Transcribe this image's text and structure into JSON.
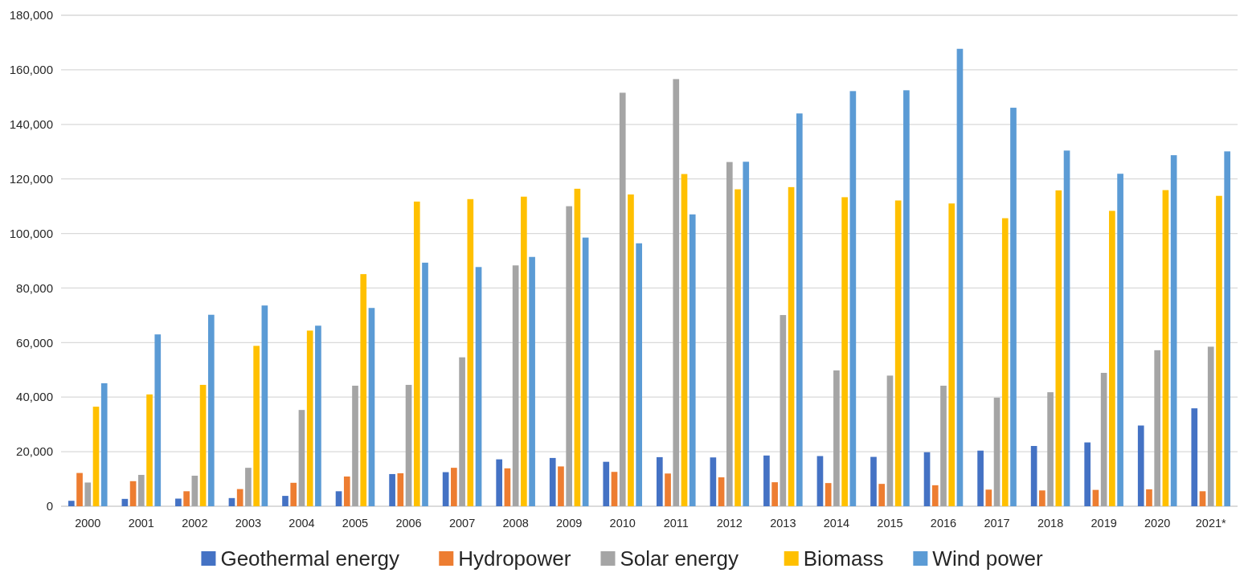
{
  "chart_data": {
    "type": "bar",
    "categories": [
      "2000",
      "2001",
      "2002",
      "2003",
      "2004",
      "2005",
      "2006",
      "2007",
      "2008",
      "2009",
      "2010",
      "2011",
      "2012",
      "2013",
      "2014",
      "2015",
      "2016",
      "2017",
      "2018",
      "2019",
      "2020",
      "2021*"
    ],
    "series": [
      {
        "name": "Geothermal energy",
        "color": "#4472c4",
        "values": [
          2000,
          2700,
          2800,
          3000,
          3800,
          5500,
          11800,
          12500,
          17200,
          17700,
          16300,
          18000,
          17900,
          18600,
          18400,
          18100,
          19800,
          20400,
          22100,
          23400,
          29600,
          35900
        ]
      },
      {
        "name": "Hydropower",
        "color": "#ed7d31",
        "values": [
          12200,
          9200,
          5500,
          6300,
          8600,
          10900,
          12100,
          14100,
          13900,
          14600,
          12600,
          12000,
          10600,
          8800,
          8500,
          8200,
          7700,
          6100,
          5800,
          6000,
          6200,
          5500
        ]
      },
      {
        "name": "Solar energy",
        "color": "#a5a5a5",
        "values": [
          8700,
          11500,
          11200,
          14100,
          35300,
          44200,
          44500,
          54600,
          88300,
          110000,
          151600,
          156600,
          126200,
          70100,
          49800,
          47900,
          44200,
          39800,
          41800,
          48900,
          57200,
          58500
        ]
      },
      {
        "name": "Biomass",
        "color": "#ffc000",
        "values": [
          36500,
          41000,
          44500,
          58800,
          64400,
          85100,
          111700,
          112600,
          113500,
          116400,
          114300,
          121800,
          116200,
          117000,
          113300,
          112100,
          111000,
          105600,
          115800,
          108300,
          115900,
          113800
        ]
      },
      {
        "name": "Wind power",
        "color": "#5b9bd5",
        "values": [
          45100,
          63000,
          70200,
          73600,
          66200,
          72700,
          89300,
          87700,
          91400,
          98500,
          96400,
          107000,
          126300,
          144000,
          152200,
          152500,
          167700,
          146100,
          130400,
          121900,
          128700,
          130100
        ]
      }
    ],
    "ylim": [
      0,
      180000
    ],
    "yticks": [
      {
        "value": 0,
        "label": "0"
      },
      {
        "value": 20000,
        "label": "20,000"
      },
      {
        "value": 40000,
        "label": "40,000"
      },
      {
        "value": 60000,
        "label": "60,000"
      },
      {
        "value": 80000,
        "label": "80,000"
      },
      {
        "value": 100000,
        "label": "100,000"
      },
      {
        "value": 120000,
        "label": "120,000"
      },
      {
        "value": 140000,
        "label": "140,000"
      },
      {
        "value": 160000,
        "label": "160,000"
      },
      {
        "value": 180000,
        "label": "180,000"
      }
    ],
    "grid": "y",
    "legend": "bottom"
  }
}
